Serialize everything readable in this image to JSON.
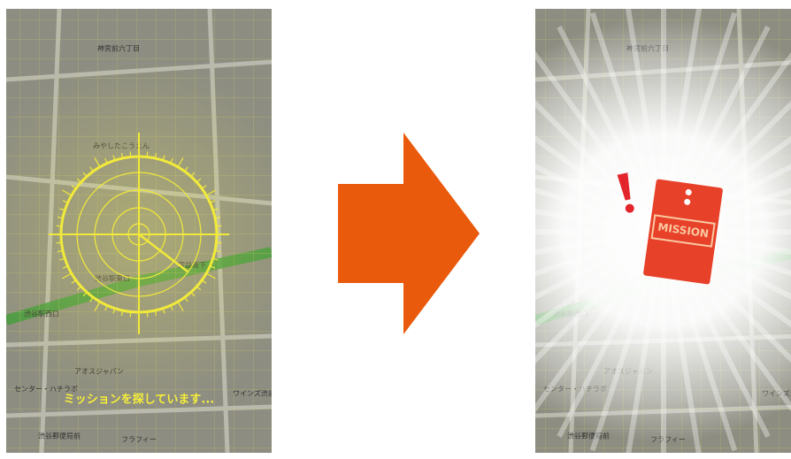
{
  "left_screen": {
    "status_text": "ミッションを探しています..."
  },
  "right_screen": {
    "envelope_label": "MISSION"
  },
  "map_labels": [
    "神宮前六丁目",
    "みやしたこうえん",
    "渋谷駅東口",
    "渋谷郵便局前",
    "フラフィー",
    "アオスジャパン",
    "センター・ハチラボ",
    "宮益坂下",
    "ワインズ渋谷",
    "渋谷駅西口"
  ]
}
